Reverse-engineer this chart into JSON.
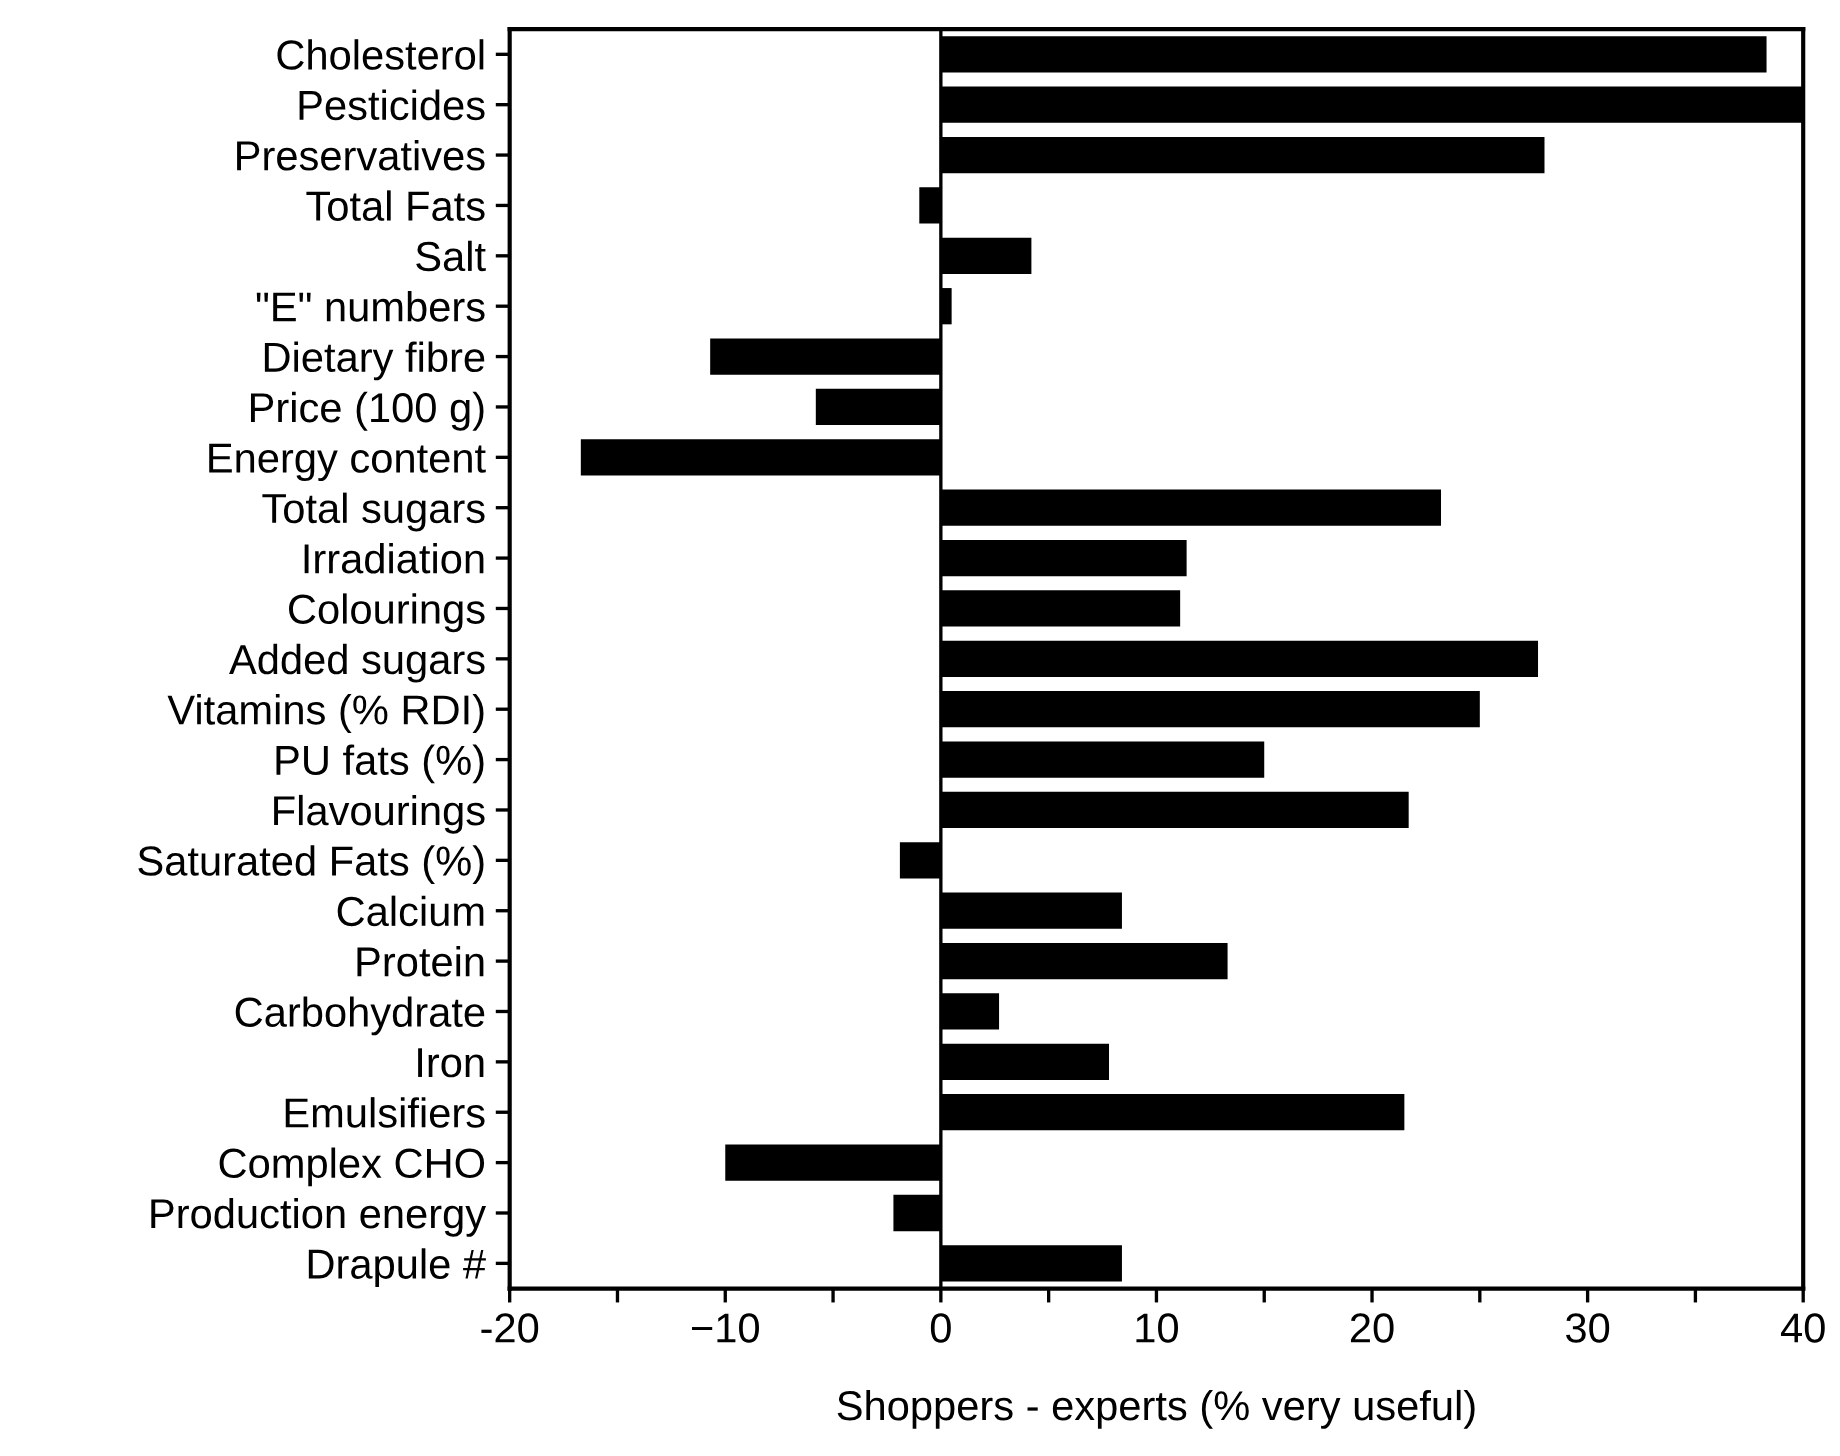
{
  "chart_data": {
    "type": "bar",
    "orientation": "horizontal",
    "xlabel": "Shoppers - experts (% very useful)",
    "categories": [
      "Cholesterol",
      "Pesticides",
      "Preservatives",
      "Total Fats",
      "Salt",
      "\"E\" numbers",
      "Dietary fibre",
      "Price (100 g)",
      "Energy content",
      "Total sugars",
      "Irradiation",
      "Colourings",
      "Added sugars",
      "Vitamins (% RDI)",
      "PU fats (%)",
      "Flavourings",
      "Saturated Fats (%)",
      "Calcium",
      "Protein",
      "Carbohydrate",
      "Iron",
      "Emulsifiers",
      "Complex CHO",
      "Production energy",
      "Drapule #"
    ],
    "values": [
      38.3,
      40,
      28.0,
      -1.0,
      4.2,
      0.5,
      -10.7,
      -5.8,
      -16.7,
      23.2,
      11.4,
      11.1,
      27.7,
      25.0,
      15.0,
      21.7,
      -1.9,
      8.4,
      13.3,
      2.7,
      7.8,
      21.5,
      -10.0,
      -2.2,
      8.4
    ],
    "color": "#000000",
    "xlim": [
      -20,
      40
    ],
    "xticks": [
      -20,
      {
        "value": -15,
        "label": null
      },
      {
        "value": -10,
        "label": "−10"
      },
      {
        "value": -5,
        "label": null
      },
      0,
      {
        "value": 5,
        "label": null
      },
      10,
      {
        "value": 15,
        "label": null
      },
      20,
      {
        "value": 25,
        "label": null
      },
      30,
      {
        "value": 35,
        "label": null
      },
      40
    ],
    "ref_lines": [
      {
        "axis": "x",
        "value": 0,
        "label": null,
        "color": "#000000"
      }
    ],
    "grid": false,
    "legend": false
  }
}
